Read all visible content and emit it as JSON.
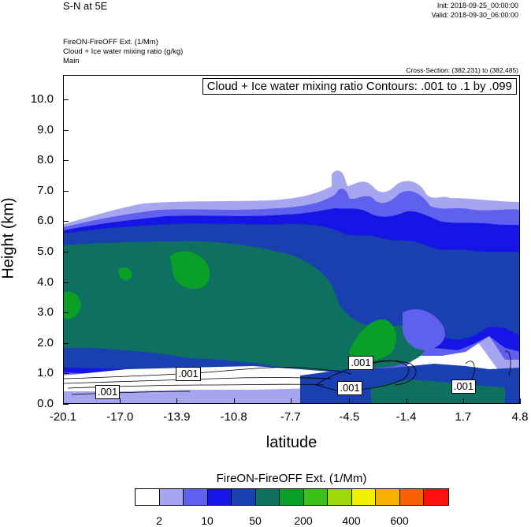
{
  "header": {
    "title": "S-N at 5E",
    "init": "Init: 2018-09-25_00:00:00",
    "valid": "Valid: 2018-09-30_06:00:00",
    "field1": "FireON-FireOFF Ext.   (1/Mm)",
    "field2": "Cloud + Ice water mixing ratio   (g/kg)",
    "field3": "Main",
    "cross_section": "Cross-Section: (382,231) to (382,485)"
  },
  "chart_data": {
    "type": "heatmap",
    "contour_label": "Cloud + Ice water mixing ratio Contours: .001 to .1 by .099",
    "xlabel": "latitude",
    "ylabel": "Height (km)",
    "xlim": [
      -20.1,
      4.8
    ],
    "ylim": [
      0,
      10.8
    ],
    "x_ticks": [
      "-20.1",
      "-17.0",
      "-13.9",
      "-10.8",
      "-7.7",
      "-4.5",
      "-1.4",
      "1.7",
      "4.8"
    ],
    "y_ticks": [
      "0.0",
      "1.0",
      "2.0",
      "3.0",
      "4.0",
      "5.0",
      "6.0",
      "7.0",
      "8.0",
      "9.0",
      "10.0"
    ],
    "contour_value_labels": [
      {
        "text": ".001",
        "lat": -13.3,
        "height": 1.0
      },
      {
        "text": ".001",
        "lat": -17.7,
        "height": 0.42
      },
      {
        "text": ".001",
        "lat": -3.9,
        "height": 1.38
      },
      {
        "text": ".001",
        "lat": -4.5,
        "height": 0.55
      },
      {
        "text": ".001",
        "lat": 1.7,
        "height": 0.6
      }
    ],
    "colorbar": {
      "title": "FireON-FireOFF Ext.  (1/Mm)",
      "colors": [
        "#ffffff",
        "#a5a5f0",
        "#6060ee",
        "#1515e6",
        "#1a3fb0",
        "#0d7060",
        "#0aa028",
        "#3cc01c",
        "#9ed80c",
        "#f0f000",
        "#f8b000",
        "#f86000",
        "#ff1010"
      ],
      "labels": [
        "2",
        "10",
        "50",
        "200",
        "400",
        "600"
      ]
    }
  }
}
